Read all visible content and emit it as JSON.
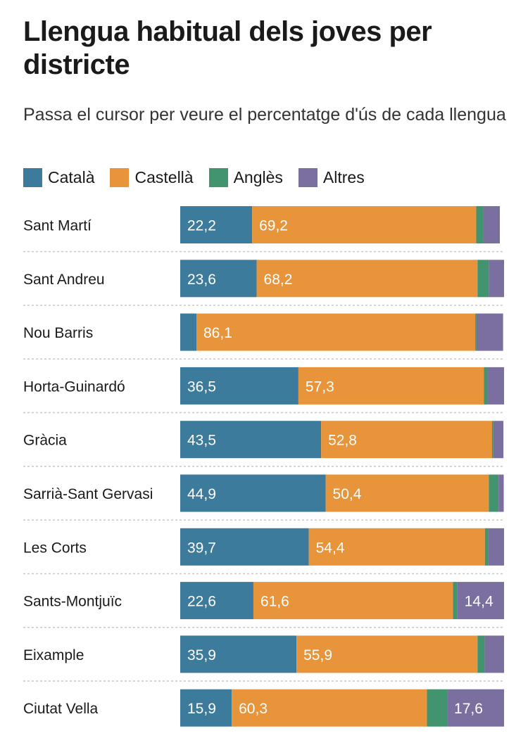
{
  "chart_data": {
    "type": "bar",
    "orientation": "horizontal",
    "stacked": true,
    "title": "Llengua habitual dels joves per districte",
    "subtitle": "Passa el cursor per veure el percentatge d'ús de cada llengua",
    "categories": [
      "Sant Martí",
      "Sant Andreu",
      "Nou Barris",
      "Horta-Guinardó",
      "Gràcia",
      "Sarrià-Sant Gervasi",
      "Les Corts",
      "Sants-Montjuïc",
      "Eixample",
      "Ciutat Vella"
    ],
    "series": [
      {
        "name": "Català",
        "color": "#3d7b9c",
        "values": [
          22.2,
          23.6,
          5.0,
          36.5,
          43.5,
          44.9,
          39.7,
          22.6,
          35.9,
          15.9
        ],
        "labels": [
          "22,2",
          "23,6",
          "",
          "36,5",
          "43,5",
          "44,9",
          "39,7",
          "22,6",
          "35,9",
          "15,9"
        ]
      },
      {
        "name": "Castellà",
        "color": "#e8943a",
        "values": [
          69.2,
          68.2,
          86.1,
          57.3,
          52.8,
          50.4,
          54.4,
          61.6,
          55.9,
          60.3
        ],
        "labels": [
          "69,2",
          "68,2",
          "86,1",
          "57,3",
          "52,8",
          "50,4",
          "54,4",
          "61,6",
          "55,9",
          "60,3"
        ]
      },
      {
        "name": "Anglès",
        "color": "#41946e",
        "values": [
          2.2,
          3.5,
          0.4,
          1.1,
          0.4,
          3.0,
          1.1,
          1.4,
          2.2,
          6.2
        ],
        "labels": [
          "",
          "",
          "",
          "",
          "",
          "",
          "",
          "",
          "",
          ""
        ]
      },
      {
        "name": "Altres",
        "color": "#7b6fa0",
        "values": [
          5.1,
          4.7,
          8.2,
          5.1,
          3.1,
          1.6,
          4.8,
          14.4,
          6.0,
          17.6
        ],
        "labels": [
          "",
          "",
          "",
          "",
          "",
          "",
          "",
          "14,4",
          "",
          "17,6"
        ]
      }
    ],
    "xlim": [
      0,
      100
    ],
    "grid": false,
    "legend_position": "top-left"
  }
}
